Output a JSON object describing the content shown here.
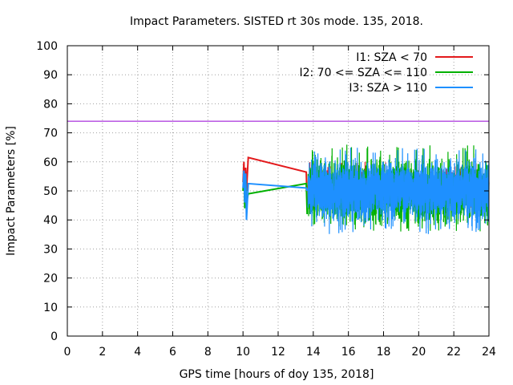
{
  "chart_data": {
    "type": "line",
    "title": "Impact Parameters. SISTED rt 30s mode. 135, 2018.",
    "xlabel": "GPS time [hours of doy 135, 2018]",
    "ylabel": "Impact Parameters [%]",
    "xlim": [
      0,
      24
    ],
    "ylim": [
      0,
      100
    ],
    "xticks": [
      0,
      2,
      4,
      6,
      8,
      10,
      12,
      14,
      16,
      18,
      20,
      22,
      24
    ],
    "yticks": [
      0,
      10,
      20,
      30,
      40,
      50,
      60,
      70,
      80,
      90,
      100
    ],
    "grid": true,
    "legend_position": "top-right",
    "reference_line": {
      "y": 74,
      "color": "#9400d3"
    },
    "series": [
      {
        "name": "I1: SZA < 70",
        "color": "#e31a1c",
        "sparse_points": [
          [
            10.0,
            53
          ],
          [
            10.05,
            60
          ],
          [
            10.1,
            47
          ],
          [
            10.15,
            58
          ],
          [
            10.2,
            50
          ],
          [
            10.3,
            61.5
          ],
          [
            13.6,
            56.5
          ],
          [
            13.65,
            45
          ]
        ],
        "dense_range": [
          13.7,
          24
        ],
        "mean": 51,
        "amplitude_min": 43,
        "amplitude_max": 60
      },
      {
        "name": "I2: 70 <= SZA <= 110",
        "color": "#00b000",
        "sparse_points": [
          [
            10.0,
            50
          ],
          [
            10.05,
            56
          ],
          [
            10.1,
            44
          ],
          [
            10.15,
            55
          ],
          [
            10.2,
            46
          ],
          [
            10.3,
            49
          ],
          [
            13.6,
            52.5
          ],
          [
            13.65,
            42
          ]
        ],
        "dense_range": [
          13.7,
          24
        ],
        "mean": 50,
        "amplitude_min": 36,
        "amplitude_max": 66
      },
      {
        "name": "I3: SZA > 110",
        "color": "#1e90ff",
        "sparse_points": [
          [
            10.0,
            51
          ],
          [
            10.05,
            57
          ],
          [
            10.1,
            46
          ],
          [
            10.15,
            56
          ],
          [
            10.2,
            40
          ],
          [
            10.3,
            52.5
          ],
          [
            13.6,
            51
          ],
          [
            13.65,
            50
          ]
        ],
        "dense_range": [
          13.7,
          24
        ],
        "mean": 50,
        "amplitude_min": 35,
        "amplitude_max": 65
      }
    ]
  }
}
